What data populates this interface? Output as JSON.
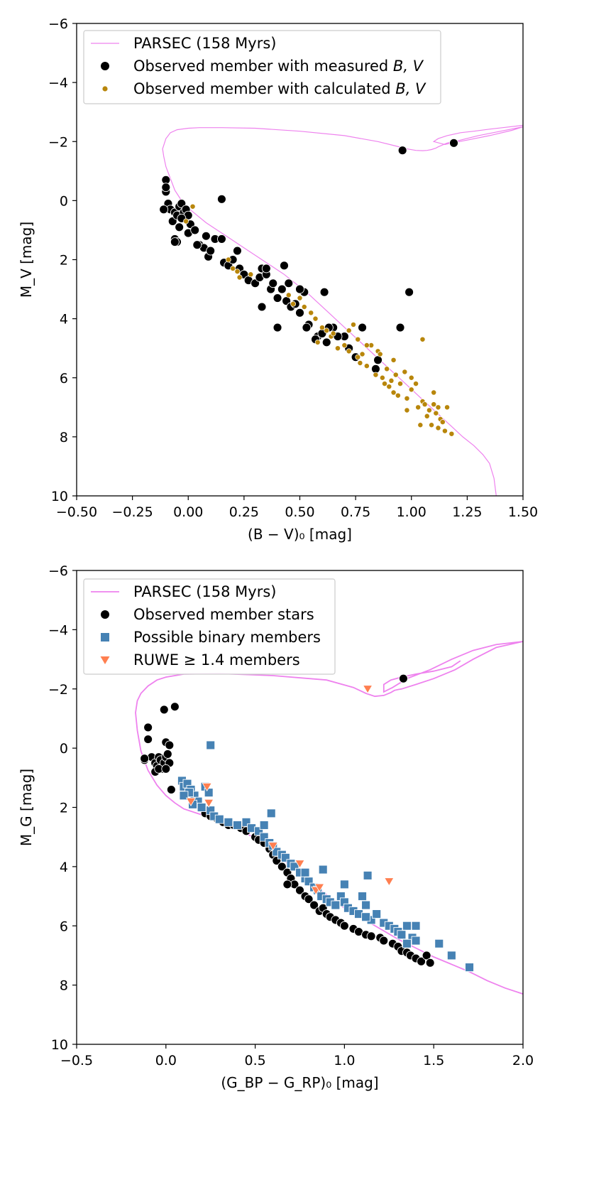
{
  "chart_data": [
    {
      "type": "scatter",
      "title": "",
      "xlabel": "(B − V)₀ [mag]",
      "ylabel": "M_V [mag]",
      "xlim": [
        -0.5,
        1.5
      ],
      "ylim": [
        10,
        -6
      ],
      "y_inverted": true,
      "grid": false,
      "legend_position": "top-left",
      "xticks": [
        -0.5,
        -0.25,
        0.0,
        0.25,
        0.5,
        0.75,
        1.0,
        1.25,
        1.5
      ],
      "xtick_labels": [
        "−0.50",
        "−0.25",
        "0.00",
        "0.25",
        "0.50",
        "0.75",
        "1.00",
        "1.25",
        "1.50"
      ],
      "yticks": [
        -6,
        -4,
        -2,
        0,
        2,
        4,
        6,
        8,
        10
      ],
      "ytick_labels": [
        "−6",
        "−4",
        "−2",
        "0",
        "2",
        "4",
        "6",
        "8",
        "10"
      ],
      "series": [
        {
          "name": "PARSEC (158 Myrs)",
          "kind": "line",
          "color": "#ee82ee",
          "x": [
            1.38,
            1.37,
            1.35,
            1.32,
            1.28,
            1.23,
            1.18,
            1.13,
            1.08,
            1.03,
            0.98,
            0.93,
            0.88,
            0.83,
            0.78,
            0.73,
            0.68,
            0.63,
            0.58,
            0.53,
            0.48,
            0.43,
            0.38,
            0.33,
            0.28,
            0.23,
            0.18,
            0.13,
            0.08,
            0.04,
            0.0,
            -0.03,
            -0.06,
            -0.08,
            -0.1,
            -0.11,
            -0.115,
            -0.1,
            -0.08,
            -0.05,
            0.0,
            0.05,
            0.15,
            0.3,
            0.5,
            0.7,
            0.85,
            0.93,
            0.98,
            1.02,
            1.05,
            1.07,
            1.09,
            1.11,
            1.12,
            1.16,
            1.22,
            1.3,
            1.4,
            1.5,
            1.45,
            1.35,
            1.25,
            1.18,
            1.15,
            1.1,
            1.12,
            1.16,
            1.22,
            1.28,
            1.35,
            1.42,
            1.5
          ],
          "y": [
            10.0,
            9.4,
            8.9,
            8.6,
            8.3,
            8.0,
            7.65,
            7.3,
            6.95,
            6.6,
            6.25,
            5.9,
            5.55,
            5.2,
            4.85,
            4.5,
            4.15,
            3.8,
            3.45,
            3.1,
            2.8,
            2.5,
            2.25,
            2.0,
            1.75,
            1.5,
            1.25,
            1.0,
            0.75,
            0.5,
            0.25,
            0.0,
            -0.35,
            -0.75,
            -1.15,
            -1.5,
            -1.75,
            -2.1,
            -2.3,
            -2.4,
            -2.45,
            -2.47,
            -2.47,
            -2.45,
            -2.35,
            -2.2,
            -2.0,
            -1.85,
            -1.75,
            -1.7,
            -1.69,
            -1.7,
            -1.73,
            -1.78,
            -1.82,
            -1.95,
            -2.05,
            -2.2,
            -2.35,
            -2.5,
            -2.38,
            -2.2,
            -2.05,
            -1.95,
            -1.9,
            -2.0,
            -2.1,
            -2.2,
            -2.3,
            -2.35,
            -2.42,
            -2.48,
            -2.55
          ]
        },
        {
          "name": "Observed member with measured B, V",
          "kind": "scatter",
          "marker": "circle",
          "color": "#000000",
          "x": [
            -0.1,
            -0.1,
            -0.09,
            -0.08,
            -0.06,
            -0.07,
            -0.05,
            -0.04,
            -0.03,
            -0.02,
            -0.01,
            0.0,
            -0.03,
            -0.04,
            -0.06,
            -0.05,
            0.0,
            0.01,
            0.03,
            0.05,
            0.07,
            0.08,
            0.09,
            0.1,
            0.12,
            0.15,
            0.16,
            0.18,
            0.2,
            0.22,
            0.23,
            0.25,
            0.27,
            0.3,
            0.32,
            0.33,
            0.35,
            0.37,
            0.38,
            0.4,
            0.42,
            0.44,
            0.46,
            0.48,
            0.5,
            0.52,
            0.54,
            0.58,
            0.6,
            0.62,
            0.65,
            0.7,
            0.75,
            0.78,
            0.85,
            0.33,
            0.35,
            0.4,
            0.43,
            0.45,
            0.5,
            0.53,
            0.57,
            0.63,
            0.67,
            0.72,
            0.84,
            0.95,
            0.99,
            0.61,
            -0.11,
            -0.1,
            -0.06,
            0.04,
            0.15,
            0.96,
            1.19
          ],
          "y": [
            -0.3,
            -0.7,
            0.1,
            0.3,
            0.4,
            0.7,
            0.5,
            0.2,
            0.1,
            0.4,
            0.3,
            0.5,
            0.6,
            0.9,
            1.3,
            1.4,
            1.1,
            0.8,
            1.0,
            1.5,
            1.6,
            1.2,
            1.9,
            1.7,
            1.3,
            1.3,
            2.1,
            2.2,
            2.0,
            1.7,
            2.3,
            2.5,
            2.7,
            2.8,
            2.6,
            2.3,
            2.5,
            3.0,
            2.8,
            3.3,
            3.0,
            3.4,
            3.6,
            3.5,
            3.8,
            3.1,
            4.2,
            4.6,
            4.5,
            4.8,
            4.3,
            4.6,
            5.3,
            4.3,
            5.4,
            3.6,
            2.3,
            4.3,
            2.2,
            2.8,
            3.0,
            4.3,
            4.7,
            4.3,
            4.6,
            5.0,
            5.7,
            4.3,
            3.1,
            3.1,
            0.3,
            -0.45,
            1.4,
            1.5,
            -0.05,
            -1.7,
            -1.95
          ]
        },
        {
          "name": "Observed member with calculated B, V",
          "kind": "scatter",
          "marker": "circle-small",
          "color": "#b8860b",
          "x": [
            0.02,
            -0.01,
            0.18,
            0.2,
            0.22,
            0.23,
            0.28,
            0.45,
            0.47,
            0.5,
            0.52,
            0.55,
            0.57,
            0.58,
            0.6,
            0.62,
            0.64,
            0.65,
            0.67,
            0.7,
            0.72,
            0.74,
            0.76,
            0.77,
            0.78,
            0.8,
            0.82,
            0.84,
            0.85,
            0.87,
            0.88,
            0.89,
            0.9,
            0.91,
            0.92,
            0.93,
            0.94,
            0.95,
            0.97,
            0.98,
            1.0,
            1.02,
            1.03,
            1.05,
            1.06,
            1.07,
            1.08,
            1.09,
            1.1,
            1.11,
            1.12,
            1.13,
            1.14,
            1.15,
            1.16,
            1.18,
            1.05,
            0.72,
            0.76,
            0.8,
            0.86,
            0.92,
            1.0,
            1.1,
            1.12,
            0.98,
            1.04
          ],
          "y": [
            0.2,
            0.7,
            2.0,
            2.3,
            2.4,
            2.6,
            2.5,
            3.2,
            3.5,
            3.3,
            3.6,
            3.8,
            4.0,
            4.8,
            4.3,
            4.4,
            4.6,
            4.5,
            5.0,
            4.9,
            5.1,
            4.2,
            5.3,
            5.5,
            5.2,
            5.6,
            4.9,
            5.9,
            5.1,
            6.0,
            6.2,
            5.7,
            6.3,
            6.1,
            6.5,
            5.9,
            6.6,
            6.2,
            5.8,
            6.7,
            6.4,
            6.2,
            7.0,
            6.8,
            6.9,
            7.3,
            7.1,
            7.6,
            6.9,
            7.2,
            7.7,
            7.4,
            7.5,
            7.8,
            7.0,
            7.9,
            4.7,
            4.4,
            4.7,
            4.9,
            5.2,
            5.4,
            6.0,
            6.5,
            7.0,
            7.1,
            7.6
          ]
        }
      ]
    },
    {
      "type": "scatter",
      "title": "",
      "xlabel": "(G_BP − G_RP)₀ [mag]",
      "ylabel": "M_G [mag]",
      "xlim": [
        -0.5,
        2.0
      ],
      "ylim": [
        10,
        -6
      ],
      "y_inverted": true,
      "grid": false,
      "legend_position": "top-left",
      "xticks": [
        -0.5,
        0.0,
        0.5,
        1.0,
        1.5,
        2.0
      ],
      "xtick_labels": [
        "−0.5",
        "0.0",
        "0.5",
        "1.0",
        "1.5",
        "2.0"
      ],
      "yticks": [
        -6,
        -4,
        -2,
        0,
        2,
        4,
        6,
        8,
        10
      ],
      "ytick_labels": [
        "−6",
        "−4",
        "−2",
        "0",
        "2",
        "4",
        "6",
        "8",
        "10"
      ],
      "series": [
        {
          "name": "PARSEC (158 Myrs)",
          "kind": "line",
          "color": "#ee82ee",
          "x": [
            2.0,
            1.9,
            1.8,
            1.7,
            1.6,
            1.5,
            1.4,
            1.3,
            1.2,
            1.1,
            1.0,
            0.9,
            0.8,
            0.7,
            0.6,
            0.5,
            0.4,
            0.3,
            0.2,
            0.1,
            0.05,
            0.0,
            -0.05,
            -0.1,
            -0.14,
            -0.16,
            -0.17,
            -0.16,
            -0.14,
            -0.1,
            -0.05,
            0.0,
            0.1,
            0.3,
            0.6,
            0.9,
            1.05,
            1.12,
            1.17,
            1.22,
            1.26,
            1.28,
            1.3,
            1.32,
            1.4,
            1.5,
            1.62,
            1.72,
            1.85,
            2.0,
            1.85,
            1.72,
            1.6,
            1.48,
            1.35,
            1.27,
            1.22,
            1.22,
            1.26,
            1.32,
            1.4,
            1.5,
            1.6,
            1.65
          ],
          "y": [
            8.3,
            8.1,
            7.85,
            7.55,
            7.3,
            7.05,
            6.75,
            6.45,
            6.1,
            5.75,
            5.4,
            4.95,
            4.5,
            4.0,
            3.45,
            3.05,
            2.7,
            2.45,
            2.25,
            2.05,
            1.85,
            1.6,
            1.25,
            0.75,
            0.1,
            -0.6,
            -1.2,
            -1.6,
            -1.85,
            -2.1,
            -2.3,
            -2.4,
            -2.5,
            -2.52,
            -2.45,
            -2.3,
            -2.05,
            -1.85,
            -1.75,
            -1.78,
            -1.88,
            -1.95,
            -1.98,
            -2.0,
            -2.15,
            -2.35,
            -2.65,
            -3.0,
            -3.4,
            -3.6,
            -3.5,
            -3.3,
            -3.0,
            -2.65,
            -2.35,
            -2.05,
            -1.9,
            -2.15,
            -2.3,
            -2.4,
            -2.5,
            -2.6,
            -2.75,
            -2.95
          ]
        },
        {
          "name": "Observed member stars",
          "kind": "scatter",
          "marker": "circle",
          "color": "#000000",
          "x": [
            -0.12,
            -0.1,
            -0.1,
            -0.08,
            -0.06,
            -0.05,
            -0.04,
            -0.03,
            -0.02,
            -0.01,
            0.0,
            0.01,
            0.02,
            -0.06,
            -0.04,
            0.0,
            0.0,
            0.02,
            0.03,
            -0.12,
            0.22,
            0.25,
            0.28,
            0.32,
            0.35,
            0.38,
            0.42,
            0.45,
            0.5,
            0.52,
            0.55,
            0.58,
            0.6,
            0.62,
            0.65,
            0.68,
            0.7,
            0.72,
            0.75,
            0.78,
            0.8,
            0.83,
            0.86,
            0.88,
            0.9,
            0.92,
            0.95,
            0.98,
            1.0,
            1.05,
            1.08,
            1.12,
            1.15,
            1.2,
            1.22,
            1.27,
            1.3,
            1.32,
            1.35,
            1.37,
            1.4,
            1.43,
            1.46,
            1.48,
            0.68,
            -0.01,
            0.05,
            1.33
          ],
          "y": [
            0.4,
            -0.3,
            -0.7,
            0.3,
            0.5,
            0.6,
            0.3,
            0.4,
            0.7,
            0.5,
            0.3,
            0.2,
            0.5,
            0.8,
            0.7,
            0.7,
            -0.2,
            -0.1,
            1.4,
            0.35,
            2.2,
            2.3,
            2.35,
            2.5,
            2.6,
            2.6,
            2.7,
            2.8,
            3.0,
            3.1,
            3.2,
            3.4,
            3.6,
            3.8,
            4.0,
            4.2,
            4.4,
            4.6,
            4.8,
            5.0,
            5.1,
            5.3,
            5.5,
            5.4,
            5.6,
            5.7,
            5.8,
            5.9,
            6.0,
            6.1,
            6.2,
            6.3,
            6.35,
            6.4,
            6.5,
            6.6,
            6.7,
            6.85,
            6.9,
            7.0,
            7.1,
            7.2,
            7.0,
            7.25,
            4.6,
            -1.3,
            -1.4,
            -2.35
          ]
        },
        {
          "name": "Possible binary members",
          "kind": "scatter",
          "marker": "square",
          "color": "#4682b4",
          "x": [
            0.09,
            0.1,
            0.12,
            0.14,
            0.16,
            0.18,
            0.2,
            0.22,
            0.24,
            0.25,
            0.27,
            0.3,
            0.35,
            0.4,
            0.45,
            0.48,
            0.52,
            0.55,
            0.58,
            0.6,
            0.62,
            0.65,
            0.67,
            0.7,
            0.72,
            0.75,
            0.78,
            0.8,
            0.83,
            0.85,
            0.87,
            0.9,
            0.92,
            0.95,
            0.98,
            1.0,
            1.02,
            1.05,
            1.08,
            1.1,
            1.12,
            1.15,
            1.18,
            1.22,
            1.25,
            1.28,
            1.3,
            1.32,
            1.35,
            1.38,
            1.4,
            1.53,
            1.6,
            1.7,
            0.25,
            0.59,
            0.15,
            0.13,
            0.1,
            1.35,
            1.12,
            0.88,
            1.4,
            1.0,
            0.55,
            0.78,
            1.13
          ],
          "y": [
            1.1,
            1.3,
            1.2,
            1.4,
            1.6,
            1.8,
            2.0,
            1.3,
            1.5,
            2.1,
            2.3,
            2.4,
            2.5,
            2.6,
            2.5,
            2.7,
            2.8,
            3.0,
            3.2,
            3.3,
            3.5,
            3.6,
            3.7,
            3.9,
            4.0,
            4.2,
            4.4,
            4.5,
            4.7,
            4.8,
            5.0,
            5.1,
            5.2,
            5.3,
            5.0,
            5.2,
            5.4,
            5.5,
            5.6,
            5.0,
            5.3,
            5.8,
            5.6,
            5.9,
            6.0,
            6.1,
            6.2,
            6.3,
            6.0,
            6.4,
            6.5,
            6.6,
            7.0,
            7.4,
            -0.1,
            2.2,
            1.9,
            1.5,
            1.6,
            6.6,
            5.7,
            4.1,
            6.0,
            4.6,
            2.6,
            4.2,
            4.3
          ]
        },
        {
          "name": "RUWE ≥ 1.4 members",
          "kind": "scatter",
          "marker": "triangle-down",
          "color": "#ff7f50",
          "x": [
            0.14,
            0.23,
            0.24,
            0.6,
            0.75,
            0.84,
            0.86,
            1.25,
            1.13
          ],
          "y": [
            1.8,
            1.3,
            1.85,
            3.3,
            3.9,
            4.8,
            4.7,
            4.5,
            -2.0
          ]
        }
      ]
    }
  ],
  "legends": [
    {
      "items": [
        {
          "label": "PARSEC (158 Myrs)"
        },
        {
          "label": "Observed member with measured ",
          "math": "B, V"
        },
        {
          "label": "Observed member with calculated ",
          "math": "B, V"
        }
      ]
    },
    {
      "items": [
        {
          "label": "PARSEC (158 Myrs)"
        },
        {
          "label": "Observed member stars"
        },
        {
          "label": "Possible binary members"
        },
        {
          "label": "RUWE ≥ 1.4 members"
        }
      ]
    }
  ]
}
